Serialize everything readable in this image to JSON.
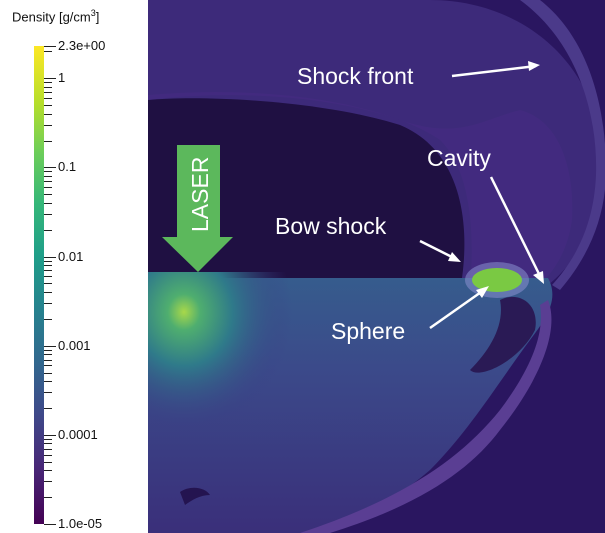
{
  "colorbar": {
    "title": "Density [g/cm",
    "title_exp": "3",
    "title_close": "]",
    "max_label": "2.3e+00",
    "min_label": "1.0e-05",
    "decade_labels": [
      "1",
      "0.1",
      "0.01",
      "0.001",
      "0.0001"
    ],
    "scale": "log",
    "colormap": "viridis"
  },
  "annotations": {
    "shock_front": "Shock front",
    "cavity": "Cavity",
    "bow_shock": "Bow shock",
    "sphere": "Sphere",
    "laser": "LASER"
  },
  "colors": {
    "background_lower": "#3a2f80",
    "background_upper": "#2b1a5c",
    "laser_arrow": "#5cb85c",
    "sphere": "#7ac943",
    "text": "#ffffff"
  }
}
